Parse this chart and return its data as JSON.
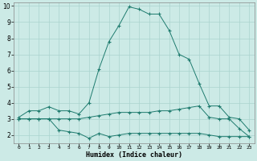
{
  "xlabel": "Humidex (Indice chaleur)",
  "xlim": [
    -0.5,
    23.5
  ],
  "ylim": [
    1.5,
    10.2
  ],
  "yticks": [
    2,
    3,
    4,
    5,
    6,
    7,
    8,
    9,
    10
  ],
  "xticks": [
    0,
    1,
    2,
    3,
    4,
    5,
    6,
    7,
    8,
    9,
    10,
    11,
    12,
    13,
    14,
    15,
    16,
    17,
    18,
    19,
    20,
    21,
    22,
    23
  ],
  "line_color": "#1e7b6e",
  "bg_color": "#cceae6",
  "grid_color": "#aad4ce",
  "line1_x": [
    0,
    1,
    2,
    3,
    4,
    5,
    6,
    7,
    8,
    9,
    10,
    11,
    12,
    13,
    14,
    15,
    16,
    17,
    18,
    19,
    20,
    21,
    22,
    23
  ],
  "line1_y": [
    3.1,
    3.5,
    3.5,
    3.75,
    3.5,
    3.5,
    3.3,
    4.0,
    6.1,
    7.8,
    8.8,
    9.95,
    9.8,
    9.5,
    9.5,
    8.5,
    7.0,
    6.7,
    5.2,
    3.8,
    3.8,
    3.1,
    3.0,
    2.3
  ],
  "line2_x": [
    0,
    1,
    2,
    3,
    4,
    5,
    6,
    7,
    8,
    9,
    10,
    11,
    12,
    13,
    14,
    15,
    16,
    17,
    18,
    19,
    20,
    21,
    22,
    23
  ],
  "line2_y": [
    3.0,
    3.0,
    3.0,
    3.0,
    3.0,
    3.0,
    3.0,
    3.1,
    3.2,
    3.3,
    3.4,
    3.4,
    3.4,
    3.4,
    3.5,
    3.5,
    3.6,
    3.7,
    3.8,
    3.1,
    3.0,
    3.0,
    2.4,
    1.9
  ],
  "line3_x": [
    0,
    1,
    2,
    3,
    4,
    5,
    6,
    7,
    8,
    9,
    10,
    11,
    12,
    13,
    14,
    15,
    16,
    17,
    18,
    19,
    20,
    21,
    22,
    23
  ],
  "line3_y": [
    3.0,
    3.0,
    3.0,
    3.0,
    2.3,
    2.2,
    2.1,
    1.8,
    2.1,
    1.9,
    2.0,
    2.1,
    2.1,
    2.1,
    2.1,
    2.1,
    2.1,
    2.1,
    2.1,
    2.0,
    1.9,
    1.9,
    1.9,
    1.9
  ],
  "marker": "+",
  "markersize": 3,
  "markeredgewidth": 0.8,
  "linewidth": 0.7
}
